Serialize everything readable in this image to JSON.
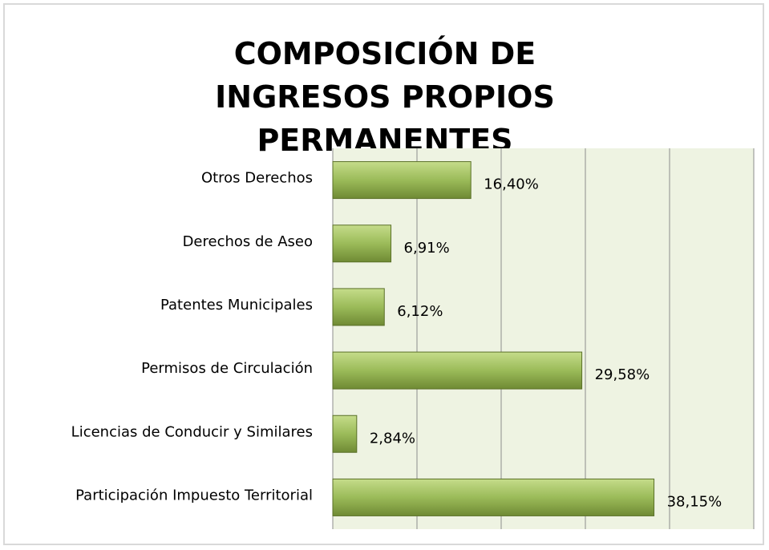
{
  "chart_data": {
    "type": "bar",
    "orientation": "horizontal",
    "title": "COMPOSICIÓN DE INGRESOS PROPIOS PERMANENTES",
    "categories": [
      "Otros Derechos",
      "Derechos de Aseo",
      "Patentes Municipales",
      "Permisos de Circulación",
      "Licencias de Conducir y Similares",
      "Participación Impuesto Territorial"
    ],
    "values": [
      16.4,
      6.91,
      6.12,
      29.58,
      2.84,
      38.15
    ],
    "value_labels": [
      "16,40%",
      "6,91%",
      "6,12%",
      "29,58%",
      "2,84%",
      "38,15%"
    ],
    "color": "#9bbb59",
    "xlim": [
      0,
      50
    ],
    "xticks": [
      0,
      10,
      20,
      30,
      40,
      50
    ],
    "grid": true
  }
}
